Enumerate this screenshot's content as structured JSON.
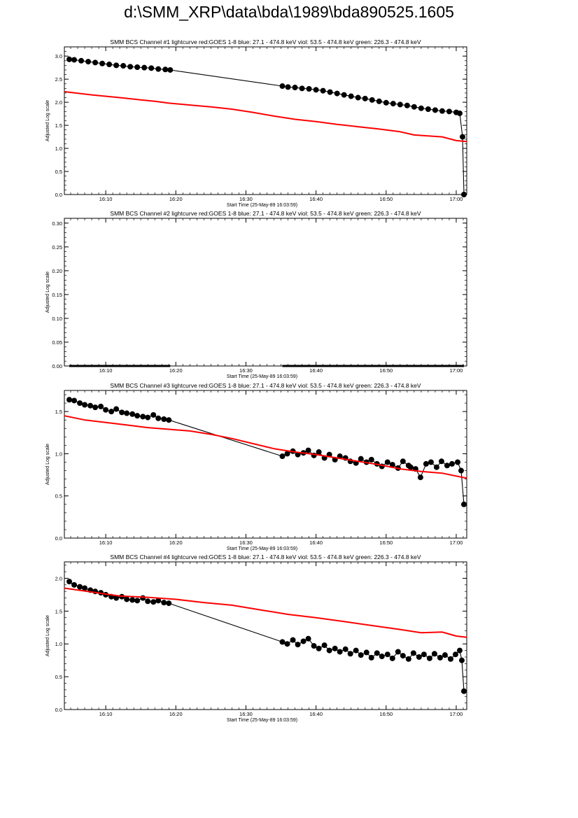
{
  "page": {
    "title": "d:\\SMM_XRP\\data\\bda\\1989\\bda890525.1605"
  },
  "chart_data": [
    {
      "type": "line",
      "title": "SMM BCS Channel #1 lightcurve  red:GOES 1-8  blue: 27.1 - 474.8 keV  viol: 53.5 - 474.8 keV  green: 226.3 - 474.8 keV",
      "xlabel": "Start Time (25-May-89 16:03:59)",
      "ylabel": "Adjusted Log scale",
      "x_ticks": [
        "16:10",
        "16:20",
        "16:30",
        "16:40",
        "16:50",
        "17:00"
      ],
      "y_ticks": [
        "0.0",
        "0.5",
        "1.0",
        "1.5",
        "2.0",
        "2.5",
        "3.0"
      ],
      "ylim": [
        0,
        3.2
      ],
      "xlim_minutes_after_16_00": [
        4.1,
        61.5
      ],
      "series": [
        {
          "color": "#000000",
          "marker": "circle",
          "x": [
            4.8,
            5.5,
            6.5,
            7.5,
            8.5,
            9.5,
            10.5,
            11.5,
            12.5,
            13.5,
            14.5,
            15.5,
            16.5,
            17.5,
            18.5,
            19.2,
            35.2,
            36.0,
            37.0,
            38.0,
            39.0,
            40.0,
            41.0,
            42.0,
            43.0,
            44.0,
            45.0,
            46.0,
            47.0,
            48.0,
            49.0,
            50.0,
            51.0,
            52.0,
            53.0,
            54.0,
            55.0,
            56.0,
            57.0,
            58.0,
            59.0,
            60.0,
            60.5,
            60.9,
            61.1
          ],
          "y": [
            2.93,
            2.92,
            2.9,
            2.88,
            2.86,
            2.84,
            2.82,
            2.8,
            2.79,
            2.77,
            2.76,
            2.75,
            2.74,
            2.72,
            2.71,
            2.7,
            2.35,
            2.33,
            2.32,
            2.3,
            2.29,
            2.27,
            2.25,
            2.22,
            2.19,
            2.16,
            2.13,
            2.1,
            2.08,
            2.05,
            2.02,
            1.99,
            1.97,
            1.95,
            1.93,
            1.9,
            1.87,
            1.85,
            1.83,
            1.81,
            1.8,
            1.78,
            1.76,
            1.25,
            0.0
          ]
        },
        {
          "color": "#ff0000",
          "marker": "none",
          "x": [
            4.1,
            8.0,
            12.0,
            15.0,
            17.0,
            19.0,
            22.0,
            25.0,
            28.0,
            31.0,
            34.0,
            37.0,
            40.0,
            43.0,
            46.0,
            49.0,
            52.0,
            54.0,
            56.0,
            58.0,
            60.0,
            61.5
          ],
          "y": [
            2.23,
            2.16,
            2.1,
            2.05,
            2.02,
            1.98,
            1.94,
            1.9,
            1.85,
            1.78,
            1.7,
            1.63,
            1.58,
            1.52,
            1.47,
            1.42,
            1.36,
            1.29,
            1.27,
            1.25,
            1.17,
            1.15
          ]
        }
      ]
    },
    {
      "type": "line",
      "title": "SMM BCS Channel #2 lightcurve  red:GOES 1-8  blue: 27.1 - 474.8 keV  viol: 53.5 - 474.8 keV  green: 226.3 - 474.8 keV",
      "xlabel": "Start Time (25-May-89 16:03:59)",
      "ylabel": "Adjusted Log scale",
      "x_ticks": [
        "16:10",
        "16:20",
        "16:30",
        "16:40",
        "16:50",
        "17:00"
      ],
      "y_ticks": [
        "0.00",
        "0.05",
        "0.10",
        "0.15",
        "0.20",
        "0.25",
        "0.30"
      ],
      "ylim": [
        0,
        0.31
      ],
      "xlim_minutes_after_16_00": [
        4.1,
        61.5
      ],
      "series": [
        {
          "color": "#000000",
          "marker": "none",
          "x": [
            4.8,
            19.2
          ],
          "y": [
            0.0,
            0.0
          ]
        },
        {
          "color": "#000000",
          "marker": "none",
          "x": [
            35.2,
            61.1
          ],
          "y": [
            0.0,
            0.0
          ]
        }
      ]
    },
    {
      "type": "line",
      "title": "SMM BCS Channel #3 lightcurve  red:GOES 1-8  blue: 27.1 - 474.8 keV  viol: 53.5 - 474.8 keV  green: 226.3 - 474.8 keV",
      "xlabel": "Start Time (25-May-89 16:03:59)",
      "ylabel": "Adjusted Log scale",
      "x_ticks": [
        "16:10",
        "16:20",
        "16:30",
        "16:40",
        "16:50",
        "17:00"
      ],
      "y_ticks": [
        "0.0",
        "0.5",
        "1.0",
        "1.5"
      ],
      "ylim": [
        0,
        1.75
      ],
      "xlim_minutes_after_16_00": [
        4.1,
        61.5
      ],
      "series": [
        {
          "color": "#000000",
          "marker": "circle",
          "x": [
            4.8,
            5.5,
            6.3,
            7.0,
            7.8,
            8.5,
            9.3,
            10.0,
            10.8,
            11.5,
            12.3,
            13.0,
            13.8,
            14.5,
            15.3,
            16.0,
            16.8,
            17.5,
            18.3,
            19.0,
            35.2,
            35.9,
            36.7,
            37.4,
            38.2,
            38.9,
            39.7,
            40.4,
            41.2,
            41.9,
            42.7,
            43.4,
            44.2,
            44.9,
            45.7,
            46.4,
            47.2,
            47.9,
            48.7,
            49.4,
            50.2,
            50.9,
            51.7,
            52.4,
            53.2,
            53.5,
            54.2,
            54.9,
            55.7,
            56.4,
            57.2,
            57.9,
            58.7,
            59.4,
            60.2,
            60.7,
            61.1
          ],
          "y": [
            1.64,
            1.63,
            1.6,
            1.58,
            1.57,
            1.55,
            1.56,
            1.52,
            1.5,
            1.53,
            1.49,
            1.48,
            1.47,
            1.45,
            1.44,
            1.43,
            1.46,
            1.42,
            1.41,
            1.4,
            0.97,
            1.0,
            1.03,
            0.99,
            1.01,
            1.04,
            0.98,
            1.02,
            0.95,
            0.99,
            0.93,
            0.97,
            0.95,
            0.91,
            0.89,
            0.94,
            0.9,
            0.93,
            0.88,
            0.85,
            0.9,
            0.87,
            0.83,
            0.91,
            0.86,
            0.84,
            0.82,
            0.72,
            0.88,
            0.9,
            0.84,
            0.91,
            0.86,
            0.88,
            0.9,
            0.8,
            0.4
          ]
        },
        {
          "color": "#ff0000",
          "marker": "none",
          "x": [
            4.1,
            7.0,
            10.0,
            13.0,
            16.0,
            19.0,
            22.0,
            25.0,
            28.0,
            31.0,
            34.0,
            37.0,
            40.0,
            43.0,
            46.0,
            49.0,
            52.0,
            55.0,
            58.0,
            61.5
          ],
          "y": [
            1.45,
            1.4,
            1.37,
            1.34,
            1.31,
            1.29,
            1.27,
            1.23,
            1.18,
            1.12,
            1.06,
            1.02,
            0.99,
            0.95,
            0.91,
            0.87,
            0.82,
            0.79,
            0.77,
            0.71
          ]
        }
      ]
    },
    {
      "type": "line",
      "title": "SMM BCS Channel #4 lightcurve  red:GOES 1-8  blue: 27.1 - 474.8 keV  viol: 53.5 - 474.8 keV  green: 226.3 - 474.8 keV",
      "xlabel": "Start Time (25-May-89 16:03:59)",
      "ylabel": "Adjusted Log scale",
      "x_ticks": [
        "16:10",
        "16:20",
        "16:30",
        "16:40",
        "16:50",
        "17:00"
      ],
      "y_ticks": [
        "0.0",
        "0.5",
        "1.0",
        "1.5",
        "2.0"
      ],
      "ylim": [
        0,
        2.25
      ],
      "xlim_minutes_after_16_00": [
        4.1,
        61.5
      ],
      "series": [
        {
          "color": "#000000",
          "marker": "circle",
          "x": [
            4.8,
            5.5,
            6.3,
            7.0,
            7.8,
            8.5,
            9.3,
            10.0,
            10.8,
            11.5,
            12.3,
            13.0,
            13.8,
            14.5,
            15.3,
            16.0,
            16.8,
            17.5,
            18.3,
            19.0,
            35.2,
            35.9,
            36.7,
            37.4,
            38.2,
            38.9,
            39.7,
            40.4,
            41.2,
            41.9,
            42.7,
            43.4,
            44.2,
            44.9,
            45.7,
            46.4,
            47.2,
            47.9,
            48.7,
            49.4,
            50.2,
            50.9,
            51.7,
            52.4,
            53.2,
            53.9,
            54.7,
            55.4,
            56.2,
            56.9,
            57.7,
            58.4,
            59.2,
            59.9,
            60.5,
            60.8,
            61.1
          ],
          "y": [
            1.95,
            1.9,
            1.87,
            1.85,
            1.82,
            1.8,
            1.78,
            1.75,
            1.72,
            1.7,
            1.72,
            1.68,
            1.67,
            1.66,
            1.7,
            1.65,
            1.64,
            1.66,
            1.63,
            1.62,
            1.03,
            1.0,
            1.06,
            0.99,
            1.04,
            1.08,
            0.97,
            0.93,
            0.98,
            0.9,
            0.93,
            0.88,
            0.92,
            0.85,
            0.9,
            0.83,
            0.87,
            0.79,
            0.86,
            0.81,
            0.84,
            0.78,
            0.88,
            0.82,
            0.77,
            0.86,
            0.8,
            0.84,
            0.78,
            0.85,
            0.79,
            0.83,
            0.77,
            0.84,
            0.9,
            0.75,
            0.28
          ]
        },
        {
          "color": "#ff0000",
          "marker": "none",
          "x": [
            4.1,
            8.0,
            12.0,
            16.0,
            20.0,
            24.0,
            28.0,
            32.0,
            36.0,
            40.0,
            44.0,
            48.0,
            52.0,
            55.0,
            58.0,
            60.0,
            61.5
          ],
          "y": [
            1.85,
            1.79,
            1.73,
            1.71,
            1.68,
            1.63,
            1.59,
            1.52,
            1.45,
            1.4,
            1.34,
            1.28,
            1.22,
            1.17,
            1.18,
            1.12,
            1.1
          ]
        }
      ]
    }
  ]
}
